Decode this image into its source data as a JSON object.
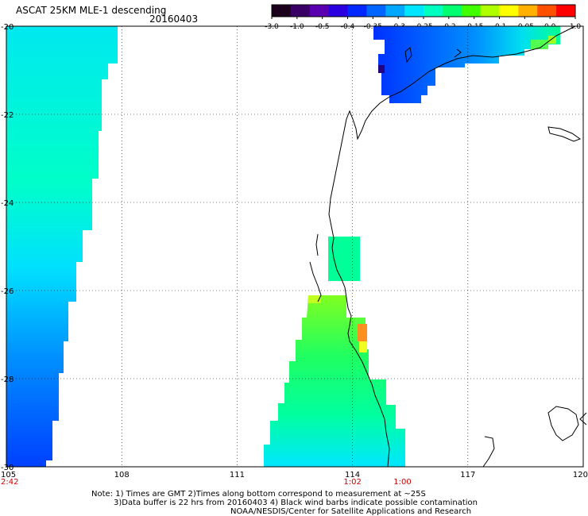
{
  "header": {
    "title": "ASCAT 25KM MLE-1 descending",
    "date": "20160403"
  },
  "colorbar": {
    "labels": [
      "-3.0",
      "-1.0",
      "-0.5",
      "-0.4",
      "-0.35",
      "-0.3",
      "-0.25",
      "-0.2",
      "-0.15",
      "-0.1",
      "-0.05",
      "0.0",
      "1.0"
    ],
    "colors": [
      "#1a001a",
      "#3a0066",
      "#5a00b0",
      "#2a00e0",
      "#0028ff",
      "#0066ff",
      "#00a8ff",
      "#00e6ff",
      "#00ffc0",
      "#00ff70",
      "#40ff00",
      "#b0ff00",
      "#ffff00",
      "#ffb000",
      "#ff5000",
      "#ff0000"
    ]
  },
  "axes": {
    "lon_ticks": [
      "105",
      "108",
      "111",
      "114",
      "117",
      "120"
    ],
    "lat_ticks": [
      "-20",
      "-22",
      "-24",
      "-26",
      "-28",
      "-30"
    ],
    "lon_range": [
      105,
      120
    ],
    "lat_range": [
      -20,
      -30
    ]
  },
  "time_labels": [
    {
      "text": "2:42",
      "lon": 105.0
    },
    {
      "text": "1:02",
      "lon": 114.0
    },
    {
      "text": "1:00",
      "lon": 115.3
    }
  ],
  "notes": {
    "line1": "Note: 1) Times are GMT 2)Times along bottom correspond to measurement at ~25S",
    "line2": "3)Data buffer is 22 hrs from 20160403 4) Black wind barbs indicate possible contamination",
    "line3": "NOAA/NESDIS/Center for Satellite Applications and Research"
  },
  "swaths": [
    {
      "name": "left-swath",
      "color_top": "#00e8f0",
      "color_mid": "#00ffc0",
      "color_bot": "#0050ff"
    },
    {
      "name": "south-swath",
      "color_top": "#60ff30",
      "color_mid": "#00ff90",
      "color_bot": "#00e6ff"
    },
    {
      "name": "north-swath",
      "color_top": "#0030ff",
      "color_mid": "#00a0ff",
      "color_bot": "#00ffb0"
    },
    {
      "name": "middle-box",
      "color_top": "#00ffa0",
      "color_mid": "#00ff90",
      "color_bot": "#00ff80"
    }
  ]
}
